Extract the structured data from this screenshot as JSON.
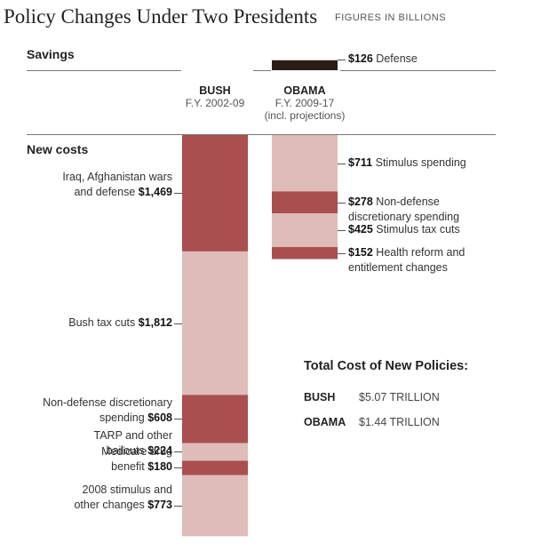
{
  "title": "Policy Changes Under Two Presidents",
  "subtitle": "FIGURES IN BILLIONS",
  "sections": {
    "savings": "Savings",
    "new_costs": "New costs"
  },
  "columns": {
    "bush": {
      "name": "BUSH",
      "period": "F.Y. 2002-09"
    },
    "obama": {
      "name": "OBAMA",
      "period": "F.Y. 2009-17",
      "note": "(incl. projections)"
    }
  },
  "colors": {
    "dark": "#a94f4f",
    "light": "#dfbcb8",
    "savings": "#2a1d16"
  },
  "chart_data": {
    "type": "bar",
    "title": "Policy Changes Under Two Presidents",
    "subtitle": "FIGURES IN BILLIONS",
    "savings": {
      "obama": [
        {
          "name": "Defense",
          "amount": "$126",
          "value": 126
        }
      ]
    },
    "new_costs": {
      "bush": [
        {
          "name": "Iraq, Afghanistan wars and defense",
          "label_lines": [
            "Iraq, Afghanistan wars",
            "and defense"
          ],
          "amount": "$1,469",
          "value": 1469,
          "shade": "dark"
        },
        {
          "name": "Bush tax cuts",
          "label_lines": [
            "Bush tax cuts"
          ],
          "amount": "$1,812",
          "value": 1812,
          "shade": "light"
        },
        {
          "name": "Non-defense discretionary spending",
          "label_lines": [
            "Non-defense discretionary",
            "spending"
          ],
          "amount": "$608",
          "value": 608,
          "shade": "dark"
        },
        {
          "name": "TARP and other bailouts",
          "label_lines": [
            "TARP and other",
            "bailouts"
          ],
          "amount": "$224",
          "value": 224,
          "shade": "light"
        },
        {
          "name": "Medicare drug benefit",
          "label_lines": [
            "Medicare drug",
            "benefit"
          ],
          "amount": "$180",
          "value": 180,
          "shade": "dark"
        },
        {
          "name": "2008 stimulus and other changes",
          "label_lines": [
            "2008 stimulus and",
            "other changes"
          ],
          "amount": "$773",
          "value": 773,
          "shade": "light"
        }
      ],
      "obama": [
        {
          "name": "Stimulus spending",
          "label_lines": [
            "Stimulus spending"
          ],
          "amount": "$711",
          "value": 711,
          "shade": "light"
        },
        {
          "name": "Non-defense discretionary spending",
          "label_lines": [
            "Non-defense",
            "discretionary spending"
          ],
          "amount": "$278",
          "value": 278,
          "shade": "dark"
        },
        {
          "name": "Stimulus tax cuts",
          "label_lines": [
            "Stimulus tax cuts"
          ],
          "amount": "$425",
          "value": 425,
          "shade": "light"
        },
        {
          "name": "Health reform and entitlement changes",
          "label_lines": [
            "Health reform and",
            "entitlement changes"
          ],
          "amount": "$152",
          "value": 152,
          "shade": "dark"
        }
      ]
    },
    "totals": {
      "title": "Total Cost of New Policies:",
      "rows": [
        {
          "name": "BUSH",
          "value": "$5.07 TRILLION"
        },
        {
          "name": "OBAMA",
          "value": "$1.44 TRILLION"
        }
      ]
    }
  }
}
